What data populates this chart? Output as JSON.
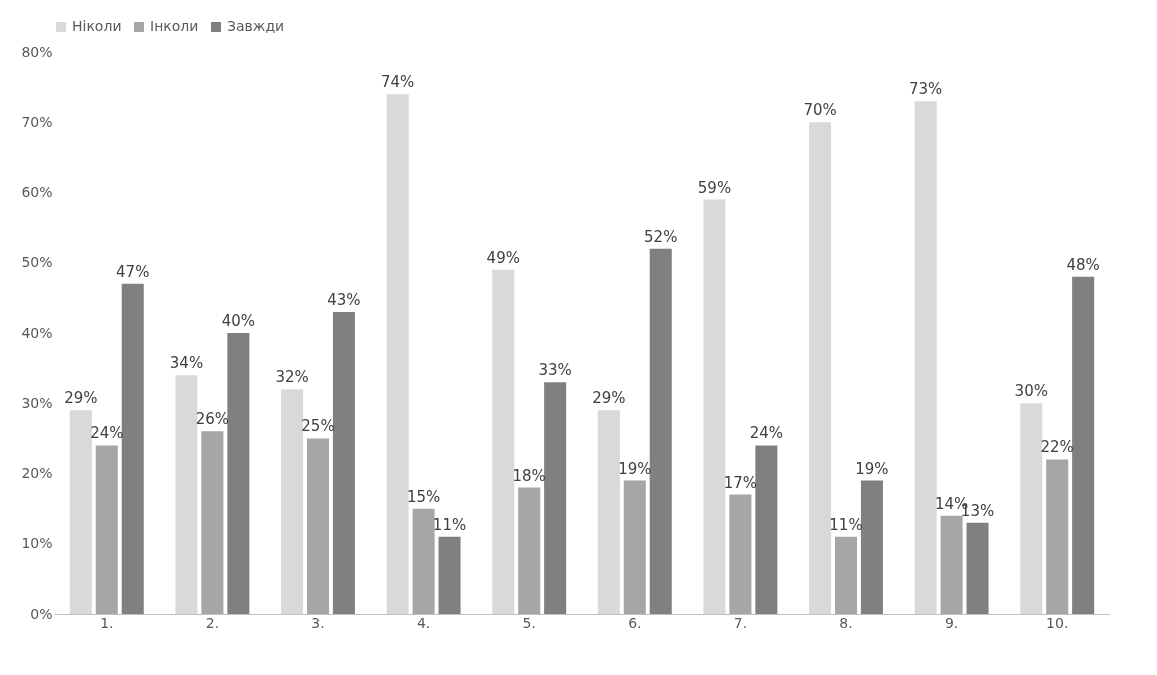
{
  "chart_data": {
    "type": "bar",
    "categories": [
      "1.",
      "2.",
      "3.",
      "4.",
      "5.",
      "6.",
      "7.",
      "8.",
      "9.",
      "10."
    ],
    "series": [
      {
        "name": "Ніколи",
        "color": "#d9d9d9",
        "values": [
          29,
          34,
          32,
          74,
          49,
          29,
          59,
          70,
          73,
          30
        ],
        "value_labels": [
          "29%",
          "34%",
          "32%",
          "74%",
          "49%",
          "29%",
          "59%",
          "70%",
          "73%",
          "30%"
        ]
      },
      {
        "name": "Інколи",
        "color": "#a6a6a6",
        "values": [
          24,
          26,
          25,
          15,
          18,
          19,
          17,
          11,
          14,
          22
        ],
        "value_labels": [
          "24%",
          "26%",
          "25%",
          "15%",
          "18%",
          "19%",
          "17%",
          "11%",
          "14%",
          "22%"
        ]
      },
      {
        "name": "Завжди",
        "color": "#808080",
        "values": [
          47,
          40,
          43,
          11,
          33,
          52,
          24,
          19,
          13,
          48
        ],
        "value_labels": [
          "47%",
          "40%",
          "43%",
          "11%",
          "33%",
          "52%",
          "24%",
          "19%",
          "13%",
          "48%"
        ]
      }
    ],
    "ylim": [
      0,
      80
    ],
    "yticks": [
      {
        "value": 0,
        "label": "0%"
      },
      {
        "value": 10,
        "label": "10%"
      },
      {
        "value": 20,
        "label": "20%"
      },
      {
        "value": 30,
        "label": "30%"
      },
      {
        "value": 40,
        "label": "40%"
      },
      {
        "value": 50,
        "label": "50%"
      },
      {
        "value": 60,
        "label": "60%"
      },
      {
        "value": 70,
        "label": "70%"
      },
      {
        "value": 80,
        "label": "80%"
      }
    ],
    "grid": false,
    "legend": "top"
  }
}
